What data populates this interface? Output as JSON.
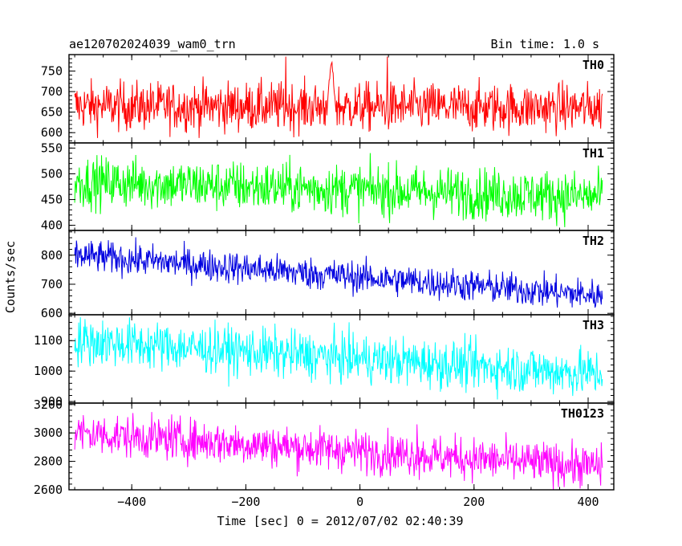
{
  "chart_data": {
    "type": "line",
    "title": "ae120702024039_wam0_trn",
    "subtitle": "Bin time: 1.0 s",
    "xlabel": "Time [sec] 0 = 2012/07/02 02:40:39",
    "ylabel": "Counts/sec",
    "xlim": [
      -510,
      445
    ],
    "x_ticks": [
      -400,
      -200,
      0,
      200,
      400
    ],
    "x_tick_labels": [
      "−400",
      "−200",
      "0",
      "200",
      "400"
    ],
    "x_data_range": [
      -500,
      425
    ],
    "bin_time_s": 1.0,
    "grid": false,
    "legend": "none",
    "panels": [
      {
        "name": "TH0",
        "color": "#ff0000",
        "ylim": [
          575,
          790
        ],
        "y_ticks": [
          600,
          650,
          700,
          750
        ],
        "y_tick_labels": [
          "600",
          "650",
          "700",
          "750"
        ],
        "trend": {
          "x": [
            -500,
            425
          ],
          "y": [
            665,
            660
          ]
        },
        "noise_amplitude": 30,
        "features": [
          {
            "x": -50,
            "y": 775,
            "note": "peak"
          },
          {
            "x": 48,
            "y": 785,
            "note": "spike"
          },
          {
            "x": -130,
            "y": 785,
            "note": "spike"
          }
        ]
      },
      {
        "name": "TH1",
        "color": "#00ff00",
        "ylim": [
          390,
          560
        ],
        "y_ticks": [
          400,
          450,
          500,
          550
        ],
        "y_tick_labels": [
          "400",
          "450",
          "500",
          "550"
        ],
        "trend": {
          "x": [
            -500,
            425
          ],
          "y": [
            485,
            455
          ]
        },
        "noise_amplitude": 25
      },
      {
        "name": "TH2",
        "color": "#0000e0",
        "ylim": [
          595,
          885
        ],
        "y_ticks": [
          600,
          700,
          800
        ],
        "y_tick_labels": [
          "600",
          "700",
          "800"
        ],
        "trend": {
          "x": [
            -500,
            425
          ],
          "y": [
            800,
            660
          ]
        },
        "noise_amplitude": 28
      },
      {
        "name": "TH3",
        "color": "#00ffff",
        "ylim": [
          895,
          1185
        ],
        "y_ticks": [
          900,
          1000,
          1100
        ],
        "y_tick_labels": [
          "900",
          "1000",
          "1100"
        ],
        "trend": {
          "x": [
            -500,
            425
          ],
          "y": [
            1100,
            990
          ]
        },
        "noise_amplitude": 40
      },
      {
        "name": "TH0123",
        "color": "#ff00ff",
        "ylim": [
          2600,
          3210
        ],
        "y_ticks": [
          2600,
          2800,
          3000,
          3200
        ],
        "y_tick_labels": [
          "2600",
          "2800",
          "3000",
          "3200"
        ],
        "trend": {
          "x": [
            -500,
            425
          ],
          "y": [
            3000,
            2760
          ]
        },
        "noise_amplitude": 75,
        "features": [
          {
            "x": 100,
            "y": 3060,
            "note": "spike"
          },
          {
            "x": -330,
            "y": 3130,
            "note": "spike"
          }
        ]
      }
    ]
  }
}
